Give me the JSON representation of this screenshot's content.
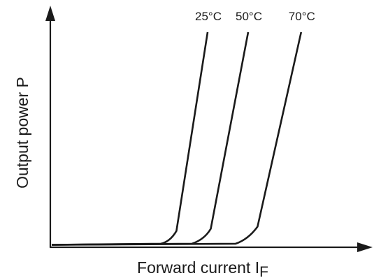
{
  "chart_data": {
    "type": "line",
    "xlabel": "Forward current I",
    "xlabel_subscript": "F",
    "ylabel": "Output power P",
    "axis_ticks": false,
    "grid": false,
    "legend": "inline labels at top of each curve",
    "xlim": [
      0,
      100
    ],
    "ylim": [
      0,
      100
    ],
    "series": [
      {
        "name": "25°C",
        "points": [
          [
            0,
            0.5
          ],
          [
            35,
            1
          ],
          [
            38,
            2
          ],
          [
            40,
            7
          ],
          [
            50,
            100
          ]
        ]
      },
      {
        "name": "50°C",
        "points": [
          [
            0,
            0.5
          ],
          [
            45,
            1
          ],
          [
            49,
            3
          ],
          [
            51,
            8
          ],
          [
            63,
            100
          ]
        ]
      },
      {
        "name": "70°C",
        "points": [
          [
            0,
            0.5
          ],
          [
            59,
            1
          ],
          [
            63,
            3
          ],
          [
            66,
            9
          ],
          [
            80,
            100
          ]
        ]
      }
    ],
    "line_color": "#1a1a1a"
  }
}
